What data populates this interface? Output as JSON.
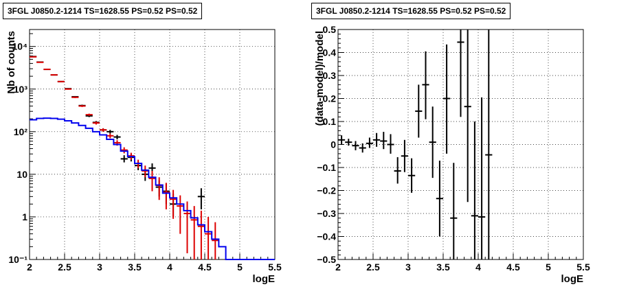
{
  "chart_data": [
    {
      "type": "scatter",
      "title": "3FGL J0850.2-1214 TS=1628.55 PS=0.52 PS=0.52",
      "xlabel": "logE",
      "ylabel": "Nb of counts",
      "xlim": [
        2,
        5.5
      ],
      "ylim": [
        0.1,
        25000
      ],
      "yscale": "log",
      "grid": true,
      "x_ticks": [
        "2",
        "2.5",
        "3",
        "3.5",
        "4",
        "4.5",
        "5",
        "5.5"
      ],
      "y_ticks": [
        {
          "v": 0.1,
          "label": "10⁻¹"
        },
        {
          "v": 1,
          "label": "1"
        },
        {
          "v": 10,
          "label": "10"
        },
        {
          "v": 100,
          "label": "10²"
        },
        {
          "v": 1000,
          "label": "10³"
        },
        {
          "v": 10000,
          "label": "10⁴"
        }
      ],
      "bin_width": 0.1,
      "series": [
        {
          "style": "errorbar",
          "color": "#000000",
          "points": [
            {
              "x": 2.05,
              "y": 5800,
              "lo": 5700,
              "hi": 5900
            },
            {
              "x": 2.15,
              "y": 4300,
              "lo": 4230,
              "hi": 4370
            },
            {
              "x": 2.25,
              "y": 2900,
              "lo": 2840,
              "hi": 2960
            },
            {
              "x": 2.35,
              "y": 2150,
              "lo": 2100,
              "hi": 2200
            },
            {
              "x": 2.45,
              "y": 1500,
              "lo": 1460,
              "hi": 1540
            },
            {
              "x": 2.55,
              "y": 1020,
              "lo": 990,
              "hi": 1050
            },
            {
              "x": 2.65,
              "y": 660,
              "lo": 635,
              "hi": 685
            },
            {
              "x": 2.75,
              "y": 410,
              "lo": 390,
              "hi": 430
            },
            {
              "x": 2.85,
              "y": 235,
              "lo": 220,
              "hi": 250
            },
            {
              "x": 2.95,
              "y": 165,
              "lo": 152,
              "hi": 178
            },
            {
              "x": 3.05,
              "y": 110,
              "lo": 100,
              "hi": 120
            },
            {
              "x": 3.15,
              "y": 100,
              "lo": 90,
              "hi": 110
            },
            {
              "x": 3.25,
              "y": 75,
              "lo": 66,
              "hi": 84
            },
            {
              "x": 3.35,
              "y": 23,
              "lo": 19,
              "hi": 28
            },
            {
              "x": 3.45,
              "y": 25,
              "lo": 20,
              "hi": 30
            },
            {
              "x": 3.55,
              "y": 16,
              "lo": 12.5,
              "hi": 20
            },
            {
              "x": 3.65,
              "y": 10,
              "lo": 7,
              "hi": 13.5
            },
            {
              "x": 3.75,
              "y": 14,
              "lo": 10.5,
              "hi": 18
            },
            {
              "x": 3.85,
              "y": 5,
              "lo": 3,
              "hi": 7.2
            },
            {
              "x": 3.95,
              "y": 4,
              "lo": 2,
              "hi": 6
            },
            {
              "x": 4.05,
              "y": 2,
              "lo": 1,
              "hi": 3.5
            },
            {
              "x": 4.45,
              "y": 3,
              "lo": 1.5,
              "hi": 4.7
            }
          ]
        },
        {
          "style": "errorbar",
          "color": "#dd0000",
          "points": [
            {
              "x": 2.05,
              "y": 5700,
              "lo": 5600,
              "hi": 5800
            },
            {
              "x": 2.15,
              "y": 4250,
              "lo": 4180,
              "hi": 4320
            },
            {
              "x": 2.25,
              "y": 2900,
              "lo": 2840,
              "hi": 2960
            },
            {
              "x": 2.35,
              "y": 2150,
              "lo": 2100,
              "hi": 2200
            },
            {
              "x": 2.45,
              "y": 1500,
              "lo": 1460,
              "hi": 1540
            },
            {
              "x": 2.55,
              "y": 1000,
              "lo": 970,
              "hi": 1030
            },
            {
              "x": 2.65,
              "y": 640,
              "lo": 615,
              "hi": 665
            },
            {
              "x": 2.75,
              "y": 400,
              "lo": 380,
              "hi": 420
            },
            {
              "x": 2.85,
              "y": 250,
              "lo": 235,
              "hi": 265
            },
            {
              "x": 2.95,
              "y": 160,
              "lo": 147,
              "hi": 173
            },
            {
              "x": 3.05,
              "y": 110,
              "lo": 100,
              "hi": 120
            },
            {
              "x": 3.15,
              "y": 80,
              "lo": 70,
              "hi": 90
            },
            {
              "x": 3.25,
              "y": 55,
              "lo": 47,
              "hi": 63
            },
            {
              "x": 3.35,
              "y": 37,
              "lo": 31,
              "hi": 43
            },
            {
              "x": 3.45,
              "y": 27,
              "lo": 22,
              "hi": 32
            },
            {
              "x": 3.55,
              "y": 18,
              "lo": 14,
              "hi": 22
            },
            {
              "x": 3.65,
              "y": 12,
              "lo": 8.5,
              "hi": 16
            },
            {
              "x": 3.75,
              "y": 8,
              "lo": 4,
              "hi": 12
            },
            {
              "x": 3.85,
              "y": 5.5,
              "lo": 2.5,
              "hi": 8.5
            },
            {
              "x": 3.95,
              "y": 3.8,
              "lo": 1.5,
              "hi": 6.3
            },
            {
              "x": 4.05,
              "y": 2.6,
              "lo": 0.9,
              "hi": 4.3
            },
            {
              "x": 4.15,
              "y": 1.8,
              "lo": 0.4,
              "hi": 3.2
            },
            {
              "x": 4.25,
              "y": 1.2,
              "lo": 0.14,
              "hi": 2.3
            },
            {
              "x": 4.35,
              "y": 0.85,
              "lo": 0.1,
              "hi": 1.8
            },
            {
              "x": 4.45,
              "y": 0.6,
              "lo": 0.1,
              "hi": 1.4
            },
            {
              "x": 4.55,
              "y": 0.4,
              "lo": 0.1,
              "hi": 1.0
            },
            {
              "x": 4.65,
              "y": 0.28,
              "lo": 0.1,
              "hi": 0.75
            }
          ]
        },
        {
          "style": "step",
          "color": "#0000ee",
          "bins": [
            {
              "x0": 2.0,
              "y": 190
            },
            {
              "x0": 2.1,
              "y": 205
            },
            {
              "x0": 2.2,
              "y": 208
            },
            {
              "x0": 2.3,
              "y": 205
            },
            {
              "x0": 2.4,
              "y": 196
            },
            {
              "x0": 2.5,
              "y": 180
            },
            {
              "x0": 2.6,
              "y": 160
            },
            {
              "x0": 2.7,
              "y": 140
            },
            {
              "x0": 2.8,
              "y": 120
            },
            {
              "x0": 2.9,
              "y": 100
            },
            {
              "x0": 3.0,
              "y": 84
            },
            {
              "x0": 3.1,
              "y": 66
            },
            {
              "x0": 3.2,
              "y": 50
            },
            {
              "x0": 3.3,
              "y": 35
            },
            {
              "x0": 3.4,
              "y": 26
            },
            {
              "x0": 3.5,
              "y": 18
            },
            {
              "x0": 3.6,
              "y": 12.5
            },
            {
              "x0": 3.7,
              "y": 8.5
            },
            {
              "x0": 3.8,
              "y": 5.6
            },
            {
              "x0": 3.9,
              "y": 3.6
            },
            {
              "x0": 4.0,
              "y": 2.8
            },
            {
              "x0": 4.1,
              "y": 2.0
            },
            {
              "x0": 4.2,
              "y": 1.4
            },
            {
              "x0": 4.3,
              "y": 0.95
            },
            {
              "x0": 4.4,
              "y": 0.65
            },
            {
              "x0": 4.5,
              "y": 0.45
            },
            {
              "x0": 4.6,
              "y": 0.3
            },
            {
              "x0": 4.7,
              "y": 0.2
            },
            {
              "x0": 4.8,
              "y": 0.1
            },
            {
              "x0": 4.9,
              "y": 0.1
            },
            {
              "x0": 5.0,
              "y": 0.1
            },
            {
              "x0": 5.1,
              "y": 0.1
            },
            {
              "x0": 5.2,
              "y": 0.1
            },
            {
              "x0": 5.3,
              "y": 0.1
            },
            {
              "x0": 5.4,
              "y": 0.1
            }
          ]
        }
      ]
    },
    {
      "type": "scatter",
      "title": "3FGL J0850.2-1214 TS=1628.55 PS=0.52 PS=0.52",
      "xlabel": "logE",
      "ylabel": "(data-model)/model",
      "xlim": [
        2,
        5.5
      ],
      "ylim": [
        -0.5,
        0.5
      ],
      "grid": true,
      "x_ticks": [
        "2",
        "2.5",
        "3",
        "3.5",
        "4",
        "4.5",
        "5",
        "5.5"
      ],
      "y_ticks": [
        "-0.5",
        "-0.4",
        "-0.3",
        "-0.2",
        "-0.1",
        "0",
        "0.1",
        "0.2",
        "0.3",
        "0.4",
        "0.5"
      ],
      "bin_width": 0.1,
      "points": [
        {
          "x": 2.05,
          "y": 0.02,
          "lo": 0.0,
          "hi": 0.04
        },
        {
          "x": 2.15,
          "y": 0.01,
          "lo": -0.005,
          "hi": 0.025
        },
        {
          "x": 2.25,
          "y": -0.005,
          "lo": -0.025,
          "hi": 0.015
        },
        {
          "x": 2.35,
          "y": -0.015,
          "lo": -0.035,
          "hi": 0.005
        },
        {
          "x": 2.45,
          "y": 0.005,
          "lo": -0.015,
          "hi": 0.03
        },
        {
          "x": 2.55,
          "y": 0.02,
          "lo": -0.01,
          "hi": 0.05
        },
        {
          "x": 2.65,
          "y": 0.015,
          "lo": -0.02,
          "hi": 0.055
        },
        {
          "x": 2.75,
          "y": 0.0,
          "lo": -0.04,
          "hi": 0.045
        },
        {
          "x": 2.85,
          "y": -0.115,
          "lo": -0.17,
          "hi": -0.055
        },
        {
          "x": 2.95,
          "y": -0.05,
          "lo": -0.12,
          "hi": 0.02
        },
        {
          "x": 3.05,
          "y": -0.135,
          "lo": -0.21,
          "hi": -0.06
        },
        {
          "x": 3.15,
          "y": 0.145,
          "lo": 0.03,
          "hi": 0.26
        },
        {
          "x": 3.25,
          "y": 0.26,
          "lo": 0.11,
          "hi": 0.405
        },
        {
          "x": 3.35,
          "y": 0.01,
          "lo": -0.145,
          "hi": 0.165
        },
        {
          "x": 3.45,
          "y": -0.235,
          "lo": -0.4,
          "hi": -0.07
        },
        {
          "x": 3.55,
          "y": 0.2,
          "lo": -0.04,
          "hi": 0.435
        },
        {
          "x": 3.65,
          "y": -0.32,
          "lo": -0.5,
          "hi": -0.08
        },
        {
          "x": 3.75,
          "y": 0.445,
          "lo": 0.12,
          "hi": 0.5
        },
        {
          "x": 3.85,
          "y": 0.165,
          "lo": -0.25,
          "hi": 0.5
        },
        {
          "x": 3.95,
          "y": -0.31,
          "lo": -0.5,
          "hi": 0.1
        },
        {
          "x": 4.05,
          "y": -0.315,
          "lo": -0.5,
          "hi": 0.205
        },
        {
          "x": 4.15,
          "y": -0.045,
          "lo": -0.5,
          "hi": 0.5
        }
      ]
    }
  ]
}
